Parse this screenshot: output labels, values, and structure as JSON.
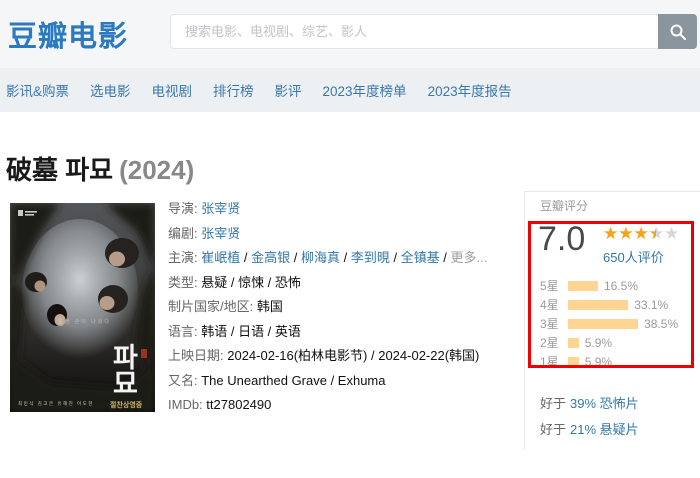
{
  "colors": {
    "brand-blue": "#2b7ac1",
    "link-blue": "#3377aa",
    "star-orange": "#f5a31a",
    "star-empty": "#d6d6d6",
    "bar-tan": "#ffd593",
    "annotation-red": "#ee0000"
  },
  "header": {
    "logo": "豆瓣电影",
    "search_placeholder": "搜索电影、电视剧、综艺、影人"
  },
  "nav": {
    "items": [
      "影讯&购票",
      "选电影",
      "电视剧",
      "排行榜",
      "影评",
      "2023年度榜单",
      "2023年度报告"
    ]
  },
  "movie": {
    "title": "破墓 파묘",
    "year": "(2024)",
    "poster": {
      "kt1": "파",
      "kt2": "묘",
      "faint_tagline": "일생 손이 나왔다",
      "credits": "최민식 김고은 유해진 이도현",
      "release_label": "절찬상영중"
    },
    "info": [
      {
        "label": "导演:",
        "parts": [
          {
            "t": "张宰贤",
            "k": "link"
          }
        ]
      },
      {
        "label": "编剧:",
        "parts": [
          {
            "t": "张宰贤",
            "k": "link"
          }
        ]
      },
      {
        "label": "主演:",
        "parts": [
          {
            "t": "崔岷植",
            "k": "link"
          },
          {
            "t": " / ",
            "k": "plain"
          },
          {
            "t": "金高银",
            "k": "link"
          },
          {
            "t": " / ",
            "k": "plain"
          },
          {
            "t": "柳海真",
            "k": "link"
          },
          {
            "t": " / ",
            "k": "plain"
          },
          {
            "t": "李到晛",
            "k": "link"
          },
          {
            "t": " / ",
            "k": "plain"
          },
          {
            "t": "全镇基",
            "k": "link"
          },
          {
            "t": " / ",
            "k": "plain"
          },
          {
            "t": "更多...",
            "k": "muted"
          }
        ]
      },
      {
        "label": "类型:",
        "parts": [
          {
            "t": "悬疑 / 惊悚 / 恐怖",
            "k": "plain"
          }
        ]
      },
      {
        "label": "制片国家/地区:",
        "parts": [
          {
            "t": "韩国",
            "k": "plain"
          }
        ]
      },
      {
        "label": "语言:",
        "parts": [
          {
            "t": "韩语 / 日语 / 英语",
            "k": "plain"
          }
        ]
      },
      {
        "label": "上映日期:",
        "parts": [
          {
            "t": "2024-02-16(柏林电影节) / 2024-02-22(韩国)",
            "k": "plain"
          }
        ]
      },
      {
        "label": "又名:",
        "parts": [
          {
            "t": "The Unearthed Grave / Exhuma",
            "k": "plain"
          }
        ]
      },
      {
        "label": "IMDb:",
        "parts": [
          {
            "t": "tt27802490",
            "k": "plain"
          }
        ]
      }
    ]
  },
  "sidebar": {
    "section_title": "豆瓣评分",
    "rating": {
      "score": "7.0",
      "stars_value": 3.5,
      "stars_max": 5,
      "votes": "650人评价"
    },
    "distribution": [
      {
        "label": "5星",
        "pct": 16.5,
        "pct_label": "16.5%"
      },
      {
        "label": "4星",
        "pct": 33.1,
        "pct_label": "33.1%"
      },
      {
        "label": "3星",
        "pct": 38.5,
        "pct_label": "38.5%"
      },
      {
        "label": "2星",
        "pct": 5.9,
        "pct_label": "5.9%"
      },
      {
        "label": "1星",
        "pct": 5.9,
        "pct_label": "5.9%"
      }
    ],
    "better_than": [
      {
        "prefix": "好于",
        "link": "39% 恐怖片"
      },
      {
        "prefix": "好于",
        "link": "21% 悬疑片"
      }
    ]
  }
}
